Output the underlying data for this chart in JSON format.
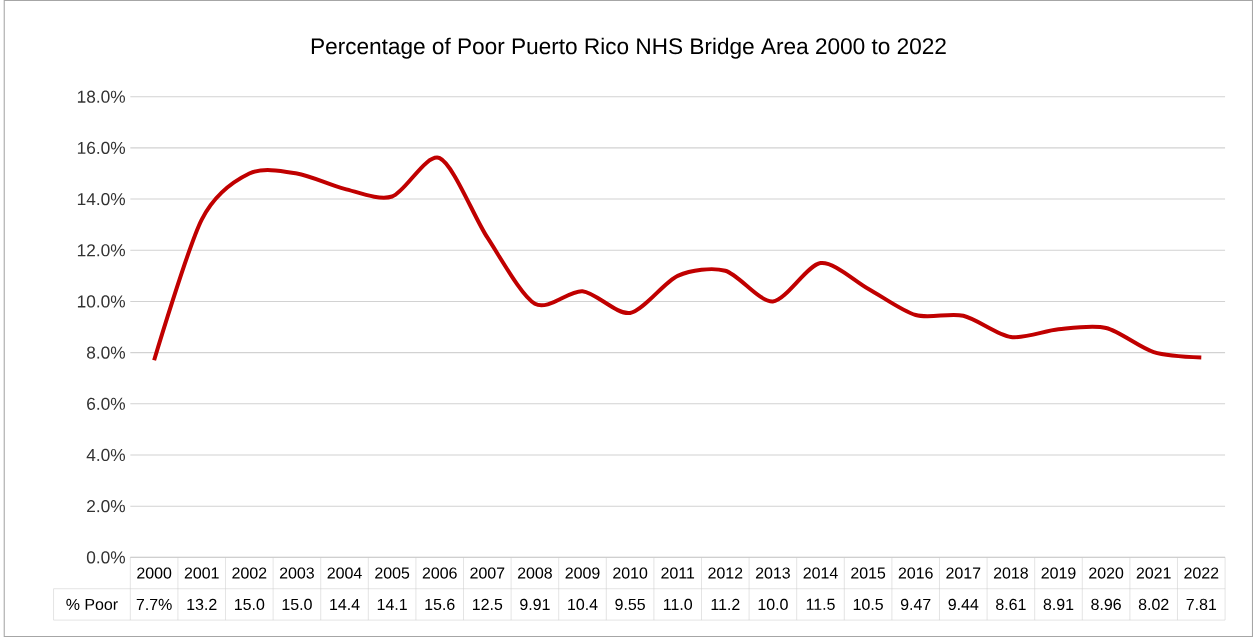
{
  "chart_data": {
    "type": "line",
    "title": "Percentage of Poor Puerto Rico NHS Bridge Area 2000 to 2022",
    "categories": [
      "2000",
      "2001",
      "2002",
      "2003",
      "2004",
      "2005",
      "2006",
      "2007",
      "2008",
      "2009",
      "2010",
      "2011",
      "2012",
      "2013",
      "2014",
      "2015",
      "2016",
      "2017",
      "2018",
      "2019",
      "2020",
      "2021",
      "2022"
    ],
    "series": [
      {
        "name": "% Poor",
        "color": "#c00000",
        "values": [
          7.7,
          13.2,
          15.0,
          15.0,
          14.4,
          14.1,
          15.6,
          12.5,
          9.91,
          10.4,
          9.55,
          11.0,
          11.2,
          10.0,
          11.5,
          10.5,
          9.47,
          9.44,
          8.61,
          8.91,
          8.96,
          8.02,
          7.81
        ],
        "value_labels": [
          "7.7%",
          "13.2",
          "15.0",
          "15.0",
          "14.4",
          "14.1",
          "15.6",
          "12.5",
          "9.91",
          "10.4",
          "9.55",
          "11.0",
          "11.2",
          "10.0",
          "11.5",
          "10.5",
          "9.47",
          "9.44",
          "8.61",
          "8.91",
          "8.96",
          "8.02",
          "7.81"
        ]
      }
    ],
    "ylim": [
      0,
      18
    ],
    "yticks": [
      {
        "value": 0,
        "label": "0.0%"
      },
      {
        "value": 2,
        "label": "2.0%"
      },
      {
        "value": 4,
        "label": "4.0%"
      },
      {
        "value": 6,
        "label": "6.0%"
      },
      {
        "value": 8,
        "label": "8.0%"
      },
      {
        "value": 10,
        "label": "10.0%"
      },
      {
        "value": 12,
        "label": "12.0%"
      },
      {
        "value": 14,
        "label": "14.0%"
      },
      {
        "value": 16,
        "label": "16.0%"
      },
      {
        "value": 18,
        "label": "18.0%"
      }
    ],
    "grid": "y"
  }
}
